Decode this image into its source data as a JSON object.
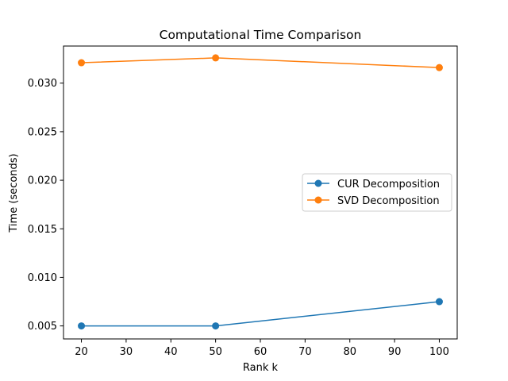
{
  "chart_data": {
    "type": "line",
    "title": "Computational Time Comparison",
    "xlabel": "Rank k",
    "ylabel": "Time (seconds)",
    "x": [
      20,
      50,
      100
    ],
    "xlim": [
      16,
      104
    ],
    "ylim": [
      0.00366,
      0.03382
    ],
    "xticks": [
      20,
      30,
      40,
      50,
      60,
      70,
      80,
      90,
      100
    ],
    "yticks": [
      0.005,
      0.01,
      0.015,
      0.02,
      0.025,
      0.03
    ],
    "xtick_labels": [
      "20",
      "30",
      "40",
      "50",
      "60",
      "70",
      "80",
      "90",
      "100"
    ],
    "ytick_labels": [
      "0.005",
      "0.010",
      "0.015",
      "0.020",
      "0.025",
      "0.030"
    ],
    "series": [
      {
        "name": "CUR Decomposition",
        "color": "#1f77b4",
        "marker": "circle",
        "values": [
          0.005,
          0.005,
          0.0075
        ]
      },
      {
        "name": "SVD Decomposition",
        "color": "#ff7f0e",
        "marker": "circle",
        "values": [
          0.0321,
          0.0326,
          0.0316
        ]
      }
    ],
    "grid": false,
    "legend_position": "center-right"
  }
}
